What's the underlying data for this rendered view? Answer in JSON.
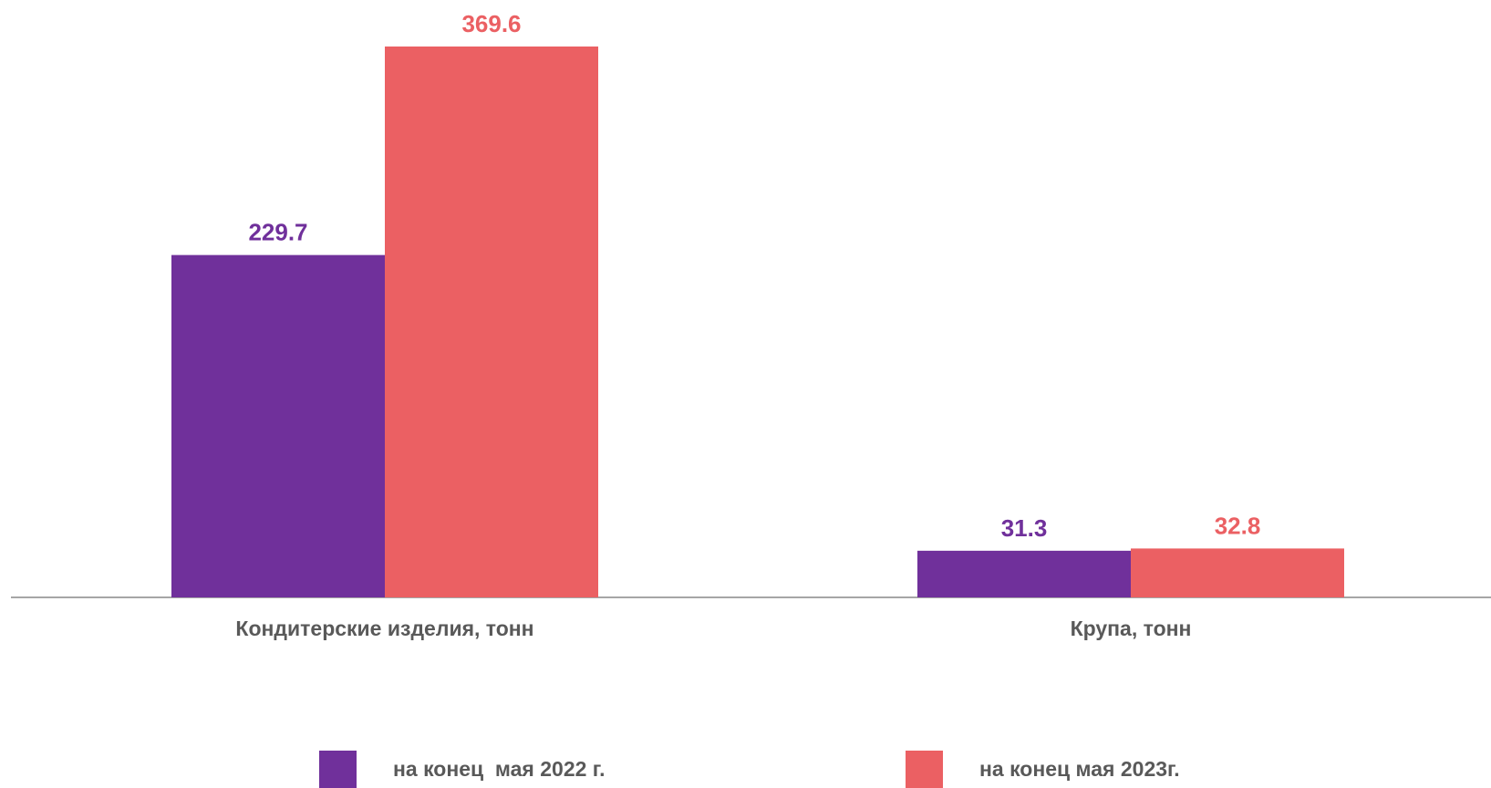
{
  "chart_data": {
    "type": "bar",
    "categories": [
      "Кондитерские изделия, тонн",
      "Крупа, тонн"
    ],
    "series": [
      {
        "name": "на конец  мая 2022 г.",
        "values": [
          229.7,
          31.3
        ],
        "color": "#70309B",
        "value_labels": [
          "229.7",
          "31.3"
        ]
      },
      {
        "name": "на конец мая 2023г.",
        "values": [
          369.6,
          32.8
        ],
        "color": "#EB6063",
        "value_labels": [
          "369.6",
          "32.8"
        ]
      }
    ],
    "ylim": [
      0,
      369.6
    ],
    "grid": false,
    "legend_position": "bottom",
    "axis_color": "#A6A6A6",
    "label_color": "#595959"
  }
}
